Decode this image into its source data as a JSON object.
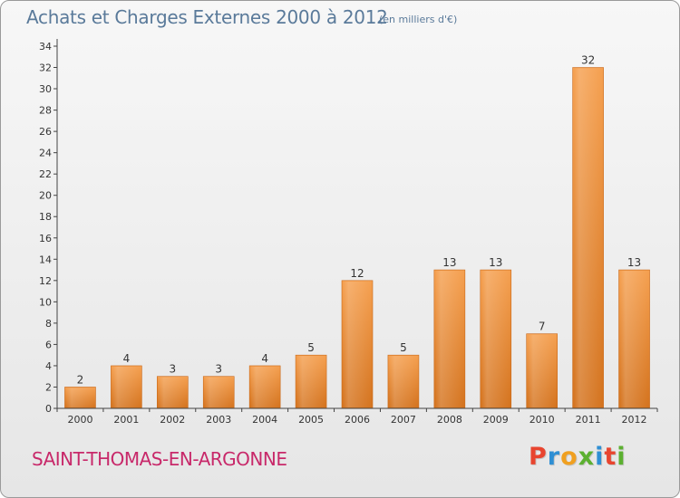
{
  "header": {
    "title": "Achats et Charges Externes 2000 à 2012",
    "unit": "(en milliers d'€)"
  },
  "footer": {
    "commune": "SAINT-THOMAS-EN-ARGONNE",
    "logo": "Proxiti",
    "logo_colors": [
      "#e8452f",
      "#2e8fd4",
      "#f0a020",
      "#5cb030",
      "#2e8fd4",
      "#e8452f",
      "#5cb030"
    ]
  },
  "colors": {
    "bar_top": "#f5a050",
    "bar_bottom": "#d4731e",
    "axis": "#444444",
    "grid": "#bbbbbb"
  },
  "chart_data": {
    "type": "bar",
    "categories": [
      "2000",
      "2001",
      "2002",
      "2003",
      "2004",
      "2005",
      "2006",
      "2007",
      "2008",
      "2009",
      "2010",
      "2011",
      "2012"
    ],
    "values": [
      2,
      4,
      3,
      3,
      4,
      5,
      12,
      5,
      13,
      13,
      7,
      32,
      13
    ],
    "ylim": [
      0,
      34
    ],
    "yticks": [
      0,
      2,
      4,
      6,
      8,
      10,
      12,
      14,
      16,
      18,
      20,
      22,
      24,
      26,
      28,
      30,
      32,
      34
    ],
    "data_labels": true,
    "grid": false
  }
}
